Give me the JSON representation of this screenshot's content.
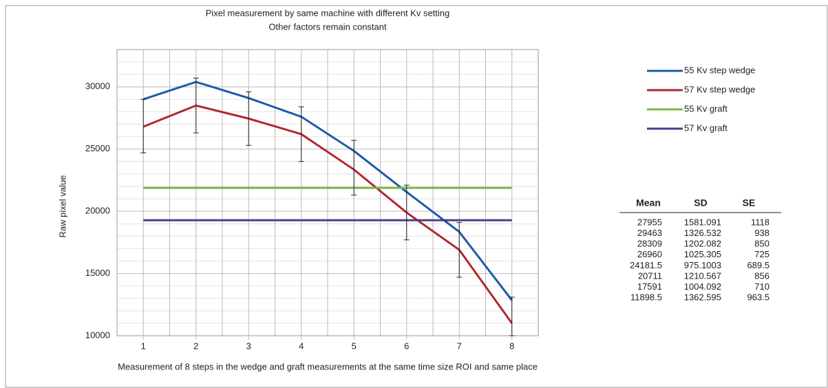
{
  "chart_data": {
    "type": "line",
    "title": "Pixel measurement by same machine with different Kv setting",
    "subtitle": "Other factors remain constant",
    "x_label": "Measurement of 8 steps in the wedge and graft measurements at the same time size ROI and same place",
    "y_label": "Raw pixel value",
    "categories": [
      "1",
      "2",
      "3",
      "4",
      "5",
      "6",
      "7",
      "8"
    ],
    "series": [
      {
        "name": "55 Kv step wedge",
        "color": "#1f5aa6",
        "values": [
          29000,
          30400,
          29100,
          27600,
          24850,
          21550,
          18350,
          12850
        ]
      },
      {
        "name": "57 Kv step wedge",
        "color": "#b0282c",
        "values": [
          26800,
          28500,
          27450,
          26200,
          23350,
          19900,
          16900,
          11000
        ]
      },
      {
        "name": "55 Kv graft",
        "color": "#7ab648",
        "values": [
          21880,
          21880,
          21880,
          21880,
          21880,
          21880,
          21880,
          21880
        ]
      },
      {
        "name": "57 Kv graft",
        "color": "#4a3a8c",
        "values": [
          19280,
          19280,
          19280,
          19280,
          19280,
          19280,
          19280,
          19280
        ]
      }
    ],
    "error_bars": {
      "high": [
        29000,
        30700,
        29600,
        28400,
        25700,
        22100,
        19100,
        13100
      ],
      "low": [
        24700,
        26300,
        25300,
        24000,
        21300,
        17700,
        14700,
        10000
      ]
    },
    "ylim": [
      10000,
      33000
    ],
    "yticks": [
      10000,
      15000,
      20000,
      25000,
      30000
    ],
    "grid": true,
    "legend": "right",
    "table": {
      "header": [
        "Mean",
        "SD",
        "SE"
      ],
      "rows": [
        [
          27955,
          1581.091,
          1118
        ],
        [
          29463,
          1326.532,
          938
        ],
        [
          28309,
          1202.082,
          850
        ],
        [
          26960,
          1025.305,
          725
        ],
        [
          24181.5,
          975.1003,
          689.5
        ],
        [
          20711,
          1210.567,
          856
        ],
        [
          17591,
          1004.092,
          710
        ],
        [
          11898.5,
          1362.595,
          963.5
        ]
      ]
    }
  }
}
